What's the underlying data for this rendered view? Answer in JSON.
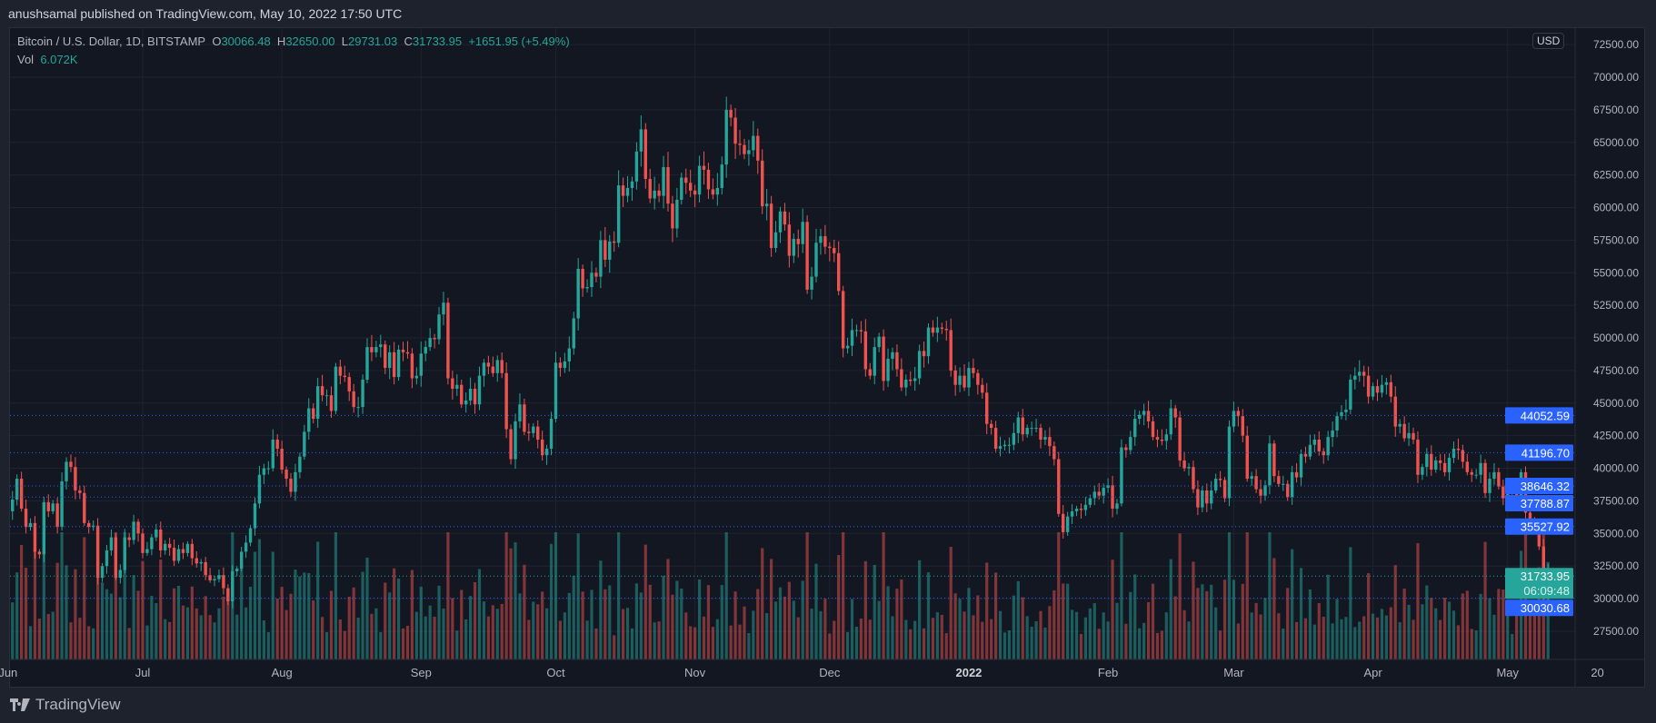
{
  "header": {
    "published": "anushsamal published on TradingView.com, May 10, 2022 17:50 UTC"
  },
  "legend": {
    "symbol": "Bitcoin / U.S. Dollar, 1D, BITSTAMP",
    "o_label": "O",
    "o": "30066.48",
    "h_label": "H",
    "h": "32650.00",
    "l_label": "L",
    "l": "29731.03",
    "c_label": "C",
    "c": "31733.95",
    "change": "+1651.95 (+5.49%)",
    "vol_label": "Vol",
    "vol": "6.072K"
  },
  "currency_button": "USD",
  "footer": {
    "logo_text": "TradingView"
  },
  "colors": {
    "up": "#26a69a",
    "down": "#ef5350",
    "level": "#2962ff",
    "background": "#131722"
  },
  "chart_data": {
    "type": "candlestick",
    "title": "Bitcoin / U.S. Dollar, 1D, BITSTAMP",
    "start_date": "2021-05-28",
    "end_date": "2022-05-10",
    "ylim": [
      25000,
      72500
    ],
    "y_ticks": [
      "72500.00",
      "70000.00",
      "67500.00",
      "65000.00",
      "62500.00",
      "60000.00",
      "57500.00",
      "55000.00",
      "52500.00",
      "50000.00",
      "47500.00",
      "45000.00",
      "42500.00",
      "40000.00",
      "37500.00",
      "35000.00",
      "32500.00",
      "30000.00",
      "27500.00"
    ],
    "x_ticks": [
      {
        "label": "Jun",
        "date": "2021-06-01"
      },
      {
        "label": "Jul",
        "date": "2021-07-01"
      },
      {
        "label": "Aug",
        "date": "2021-08-01"
      },
      {
        "label": "Sep",
        "date": "2021-09-01"
      },
      {
        "label": "Oct",
        "date": "2021-10-01"
      },
      {
        "label": "Nov",
        "date": "2021-11-01"
      },
      {
        "label": "Dec",
        "date": "2021-12-01"
      },
      {
        "label": "2022",
        "date": "2022-01-01"
      },
      {
        "label": "Feb",
        "date": "2022-02-01"
      },
      {
        "label": "Mar",
        "date": "2022-03-01"
      },
      {
        "label": "Apr",
        "date": "2022-04-01"
      },
      {
        "label": "May",
        "date": "2022-05-01"
      },
      {
        "label": "20",
        "date": "2022-05-21"
      }
    ],
    "daily_close": [
      35600,
      34600,
      35700,
      37300,
      36700,
      37600,
      39200,
      36900,
      35500,
      35800,
      33600,
      33400,
      37400,
      36700,
      37300,
      35500,
      39000,
      40500,
      40100,
      38300,
      38100,
      35800,
      35500,
      35600,
      31600,
      32500,
      33700,
      34700,
      31600,
      32200,
      34700,
      34500,
      35900,
      35000,
      33500,
      33800,
      34700,
      35300,
      33700,
      34200,
      33900,
      32900,
      33800,
      33500,
      34200,
      33100,
      32700,
      32800,
      31800,
      31400,
      31500,
      31800,
      30800,
      29800,
      32100,
      32300,
      33600,
      34300,
      35400,
      37300,
      39500,
      40000,
      40000,
      42200,
      41500,
      39900,
      39200,
      38200,
      39700,
      40900,
      42800,
      44600,
      43800,
      46300,
      45600,
      45600,
      44400,
      47800,
      47100,
      47000,
      45900,
      44700,
      44700,
      46800,
      49300,
      48900,
      49300,
      49500,
      47700,
      48900,
      47000,
      49100,
      48900,
      48800,
      46900,
      47100,
      48800,
      49300,
      50000,
      49900,
      51800,
      52700,
      46900,
      46100,
      46400,
      44900,
      45200,
      46100,
      44900,
      47100,
      48100,
      47800,
      47300,
      48300,
      47300,
      43000,
      40700,
      43600,
      44900,
      42800,
      42700,
      43200,
      42200,
      41000,
      41500,
      43800,
      48100,
      47700,
      48200,
      49200,
      51500,
      55300,
      53800,
      53900,
      55000,
      54700,
      57500,
      56000,
      57400,
      57300,
      61700,
      60900,
      61500,
      62000,
      64300,
      66000,
      62200,
      60700,
      61300,
      60900,
      63100,
      60300,
      58400,
      60600,
      62300,
      61900,
      61300,
      61000,
      63200,
      62900,
      61400,
      61000,
      61500,
      63300,
      67500,
      66900,
      64900,
      64800,
      64100,
      64400,
      65500,
      63600,
      60100,
      60300,
      56900,
      58100,
      59700,
      58700,
      56300,
      57600,
      57200,
      58900,
      53700,
      54700,
      57300,
      57800,
      57000,
      56900,
      56500,
      53600,
      49200,
      49400,
      50600,
      50600,
      50500,
      47600,
      47100,
      49300,
      50100,
      46700,
      48400,
      48900,
      47600,
      46200,
      46800,
      46700,
      46900,
      49000,
      48600,
      50800,
      50400,
      50800,
      50700,
      50600,
      47500,
      46400,
      47100,
      46200,
      47700,
      47300,
      46400,
      45800,
      43400,
      43100,
      41500,
      41700,
      41800,
      41800,
      42700,
      43900,
      42600,
      43100,
      43100,
      43100,
      42200,
      42400,
      41700,
      40700,
      36500,
      35100,
      36300,
      36700,
      36900,
      36800,
      37200,
      37700,
      38200,
      37900,
      38500,
      38700,
      36900,
      37300,
      41600,
      41400,
      42400,
      43800,
      44100,
      44400,
      43600,
      42400,
      42200,
      42100,
      42600,
      44600,
      43900,
      40600,
      40000,
      40100,
      38400,
      37000,
      38300,
      37300,
      38300,
      39200,
      39100,
      37700,
      43200,
      44400,
      44000,
      42500,
      39200,
      39400,
      38400,
      37900,
      38700,
      41900,
      39400,
      38800,
      38800,
      37800,
      39700,
      39300,
      41100,
      40900,
      41800,
      42200,
      41300,
      41000,
      42400,
      42900,
      44000,
      44300,
      44500,
      46800,
      47100,
      47400,
      47100,
      45500,
      46300,
      45800,
      46400,
      46600,
      45500,
      43200,
      43400,
      42300,
      42700,
      42200,
      39500,
      40100,
      41100,
      39900,
      40600,
      40400,
      39700,
      40800,
      41500,
      41400,
      40500,
      39700,
      39500,
      39500,
      40400,
      38100,
      39200,
      39700,
      38600,
      37700,
      38500,
      38500,
      37700,
      39700,
      36600,
      36000,
      35500,
      34000,
      30100,
      31733.95
    ],
    "last_candle": {
      "open": 30066.48,
      "high": 32650.0,
      "low": 29731.03,
      "close": 31733.95,
      "volume": "6.072K"
    },
    "price_levels": [
      {
        "value": "44052.59",
        "color": "#2962ff"
      },
      {
        "value": "41196.70",
        "color": "#2962ff"
      },
      {
        "value": "38646.32",
        "color": "#2962ff"
      },
      {
        "value": "37788.87",
        "color": "#2962ff"
      },
      {
        "value": "35527.92",
        "color": "#2962ff"
      },
      {
        "value": "30030.68",
        "color": "#2962ff"
      }
    ],
    "last_price": {
      "value": "31733.95",
      "countdown": "06:09:48",
      "color": "#26a69a"
    },
    "grid": true
  }
}
